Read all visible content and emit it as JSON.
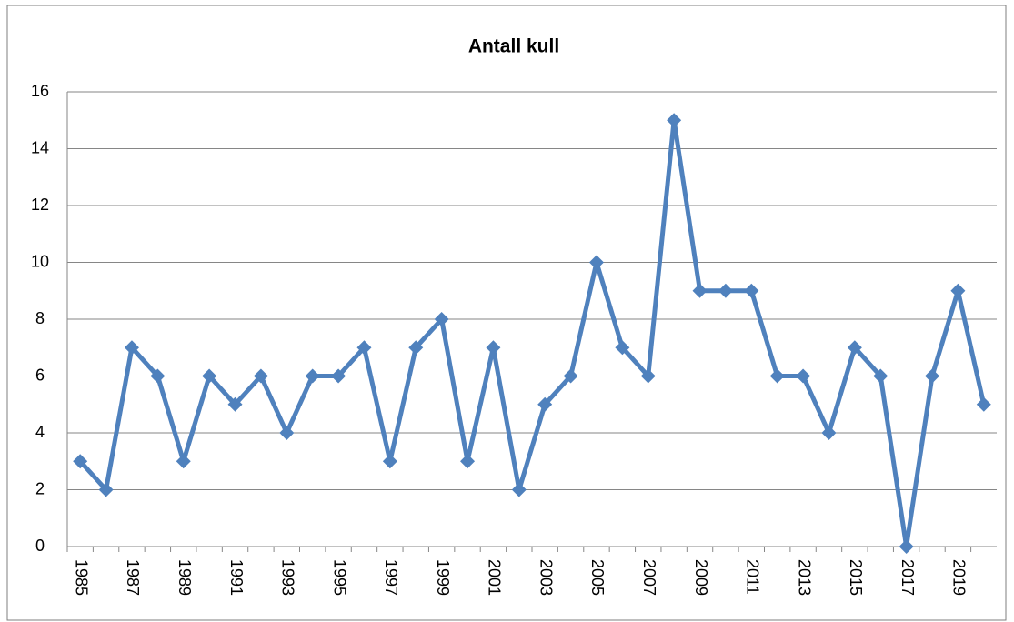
{
  "chart_data": {
    "type": "line",
    "title": "Antall kull",
    "categories": [
      "1985",
      null,
      "1987",
      null,
      "1989",
      null,
      "1991",
      null,
      "1993",
      null,
      "1995",
      null,
      "1997",
      null,
      "1999",
      null,
      "2001",
      null,
      "2003",
      null,
      "2005",
      null,
      "2007",
      null,
      "2009",
      null,
      "2011",
      null,
      "2013",
      null,
      "2015",
      null,
      "2017",
      null,
      "2019",
      null
    ],
    "series": [
      {
        "name": "Antall kull",
        "color": "#4f81bd",
        "values": [
          3,
          2,
          7,
          6,
          3,
          6,
          5,
          6,
          4,
          6,
          6,
          7,
          3,
          7,
          8,
          3,
          7,
          2,
          5,
          6,
          10,
          7,
          6,
          15,
          9,
          9,
          9,
          6,
          6,
          4,
          7,
          6,
          0,
          6,
          9,
          5
        ]
      }
    ],
    "ylim": [
      0,
      16
    ],
    "yticks": [
      0,
      2,
      4,
      6,
      8,
      10,
      12,
      14,
      16
    ],
    "grid": true,
    "legend": false
  }
}
